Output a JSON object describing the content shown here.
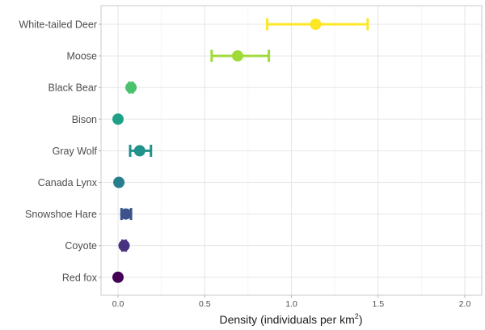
{
  "chart_data": {
    "type": "dot-errorbar",
    "title": "",
    "xlabel": "Density (individuals per km",
    "xlabel_superscript": "2",
    "xlabel_suffix": ")",
    "ylabel": "",
    "xlim": [
      -0.1,
      2.1
    ],
    "xticks": [
      0.0,
      0.5,
      1.0,
      1.5,
      2.0
    ],
    "xtick_labels": [
      "0.0",
      "0.5",
      "1.0",
      "1.5",
      "2.0"
    ],
    "grid": true,
    "categories": [
      "White-tailed Deer",
      "Moose",
      "Black Bear",
      "Bison",
      "Gray Wolf",
      "Canada Lynx",
      "Snowshoe Hare",
      "Coyote",
      "Red fox"
    ],
    "series": [
      {
        "name": "White-tailed Deer",
        "value": 1.14,
        "lower": 0.86,
        "upper": 1.44,
        "color": "#fde725"
      },
      {
        "name": "Moose",
        "value": 0.69,
        "lower": 0.54,
        "upper": 0.87,
        "color": "#a0da39"
      },
      {
        "name": "Black Bear",
        "value": 0.075,
        "lower": 0.065,
        "upper": 0.085,
        "color": "#4ac16d"
      },
      {
        "name": "Bison",
        "value": 0.0,
        "lower": 0.0,
        "upper": 0.0,
        "color": "#1fa187"
      },
      {
        "name": "Gray Wolf",
        "value": 0.125,
        "lower": 0.07,
        "upper": 0.19,
        "color": "#21918c"
      },
      {
        "name": "Canada Lynx",
        "value": 0.005,
        "lower": 0.005,
        "upper": 0.005,
        "color": "#277f8e"
      },
      {
        "name": "Snowshoe Hare",
        "value": 0.045,
        "lower": 0.02,
        "upper": 0.075,
        "color": "#3b528b"
      },
      {
        "name": "Coyote",
        "value": 0.035,
        "lower": 0.025,
        "upper": 0.045,
        "color": "#46327e"
      },
      {
        "name": "Red fox",
        "value": 0.0,
        "lower": 0.0,
        "upper": 0.0,
        "color": "#440154"
      }
    ]
  },
  "colors": {
    "grid_major": "#e6e6e6",
    "grid_minor": "#f2f2f2",
    "panel_border": "#c8c8c8"
  }
}
